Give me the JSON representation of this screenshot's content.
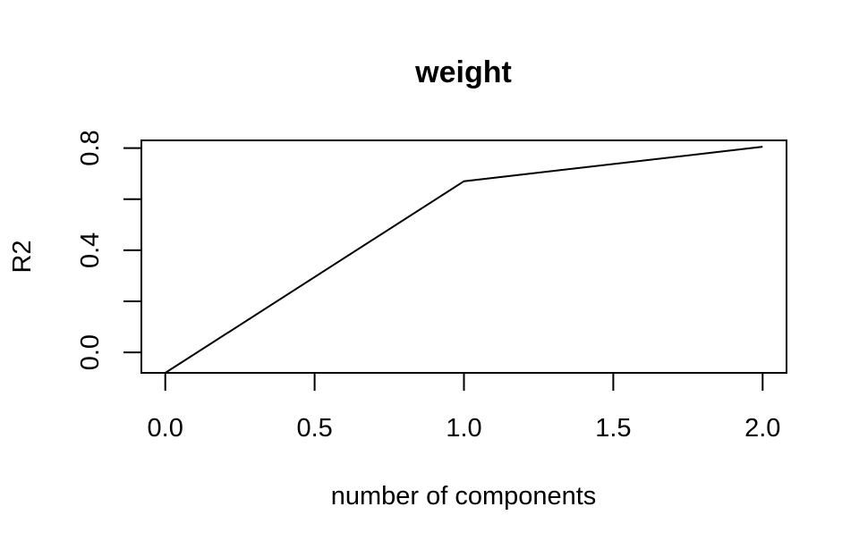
{
  "chart_data": {
    "type": "line",
    "title": "weight",
    "xlabel": "number of components",
    "ylabel": "R2",
    "x": [
      0,
      1,
      2
    ],
    "series": [
      {
        "values": [
          -0.08,
          0.67,
          0.805
        ]
      }
    ],
    "xlim": [
      -0.08,
      2.08
    ],
    "ylim": [
      -0.08,
      0.83
    ],
    "x_ticks": [
      0.0,
      0.5,
      1.0,
      1.5,
      2.0
    ],
    "x_tick_labels": [
      "0.0",
      "0.5",
      "1.0",
      "1.5",
      "2.0"
    ],
    "y_ticks": [
      0.0,
      0.2,
      0.4,
      0.6,
      0.8
    ],
    "y_tick_labels": [
      "0.0",
      "",
      "0.4",
      "",
      "0.8"
    ],
    "grid": false,
    "colors": {
      "line": "#000000",
      "frame": "#000000",
      "background": "#ffffff"
    }
  }
}
